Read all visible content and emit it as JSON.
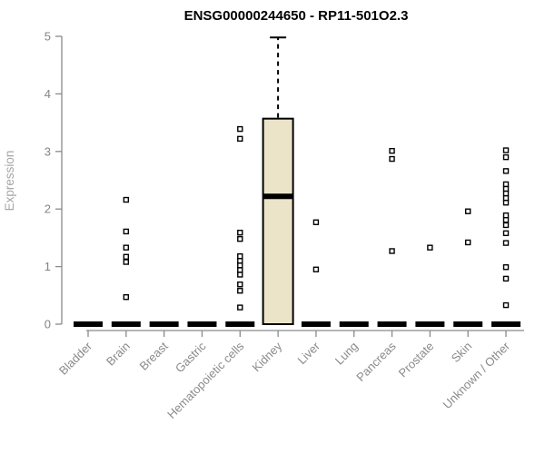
{
  "chart_data": {
    "type": "boxplot",
    "title": "ENSG00000244650 - RP11-501O2.3",
    "ylabel": "Expression",
    "ylim": [
      0,
      5
    ],
    "yticks": [
      0,
      1,
      2,
      3,
      4,
      5
    ],
    "grid": false,
    "categories": [
      "Bladder",
      "Brain",
      "Breast",
      "Gastric",
      "Hematopoietic cells",
      "Kidney",
      "Liver",
      "Lung",
      "Pancreas",
      "Prostate",
      "Skin",
      "Unknown / Other"
    ],
    "boxes": [
      {
        "category": "Bladder",
        "q1": 0,
        "median": 0,
        "q3": 0,
        "whisker_low": 0,
        "whisker_high": 0,
        "outliers": []
      },
      {
        "category": "Brain",
        "q1": 0,
        "median": 0,
        "q3": 0,
        "whisker_low": 0,
        "whisker_high": 0,
        "outliers": [
          2.16,
          1.61,
          1.33,
          1.17,
          1.08,
          0.47
        ]
      },
      {
        "category": "Breast",
        "q1": 0,
        "median": 0,
        "q3": 0,
        "whisker_low": 0,
        "whisker_high": 0,
        "outliers": []
      },
      {
        "category": "Gastric",
        "q1": 0,
        "median": 0,
        "q3": 0,
        "whisker_low": 0,
        "whisker_high": 0,
        "outliers": []
      },
      {
        "category": "Hematopoietic cells",
        "q1": 0,
        "median": 0,
        "q3": 0,
        "whisker_low": 0,
        "whisker_high": 0,
        "outliers": [
          3.39,
          3.22,
          1.59,
          1.48,
          1.18,
          1.1,
          1.02,
          0.94,
          0.86,
          0.69,
          0.58,
          0.29
        ]
      },
      {
        "category": "Kidney",
        "q1": 0,
        "median": 2.22,
        "q3": 3.57,
        "whisker_low": 0,
        "whisker_high": 4.98,
        "outliers": []
      },
      {
        "category": "Liver",
        "q1": 0,
        "median": 0,
        "q3": 0,
        "whisker_low": 0,
        "whisker_high": 0,
        "outliers": [
          1.77,
          0.95
        ]
      },
      {
        "category": "Lung",
        "q1": 0,
        "median": 0,
        "q3": 0,
        "whisker_low": 0,
        "whisker_high": 0,
        "outliers": []
      },
      {
        "category": "Pancreas",
        "q1": 0,
        "median": 0,
        "q3": 0,
        "whisker_low": 0,
        "whisker_high": 0,
        "outliers": [
          3.01,
          2.87,
          1.27
        ]
      },
      {
        "category": "Prostate",
        "q1": 0,
        "median": 0,
        "q3": 0,
        "whisker_low": 0,
        "whisker_high": 0,
        "outliers": [
          1.33
        ]
      },
      {
        "category": "Skin",
        "q1": 0,
        "median": 0,
        "q3": 0,
        "whisker_low": 0,
        "whisker_high": 0,
        "outliers": [
          1.96,
          1.42
        ]
      },
      {
        "category": "Unknown / Other",
        "q1": 0,
        "median": 0,
        "q3": 0,
        "whisker_low": 0,
        "whisker_high": 0,
        "outliers": [
          3.02,
          2.9,
          2.66,
          2.43,
          2.35,
          2.27,
          2.19,
          2.11,
          1.89,
          1.81,
          1.72,
          1.58,
          1.41,
          0.99,
          0.79,
          0.33
        ]
      }
    ],
    "colors": {
      "box_fill": "#ece4c9",
      "box_border": "#000000",
      "median": "#000000",
      "whisker": "#000000",
      "outlier_stroke": "#000000",
      "outlier_fill": "#ffffff",
      "axis": "#8a8a8a",
      "tick_label": "#848484",
      "category_label": "#8a8a8a",
      "ylabel": "#a6a6a6",
      "title": "#000000"
    },
    "marker": "open-square",
    "whisker_style": "dashed",
    "legend": "none"
  }
}
